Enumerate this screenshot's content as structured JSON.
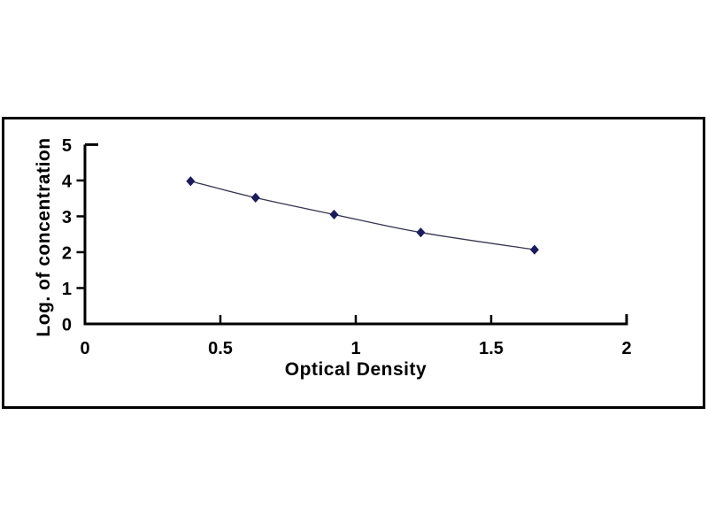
{
  "page": {
    "background": "#ffffff"
  },
  "chart_data": {
    "type": "line",
    "title": "",
    "xlabel": "Optical Density",
    "ylabel": "Log. of concentration",
    "x": [
      0.39,
      0.63,
      0.92,
      1.24,
      1.66
    ],
    "y": [
      3.98,
      3.52,
      3.05,
      2.55,
      2.07
    ],
    "xlim": [
      0,
      2
    ],
    "ylim": [
      0,
      5
    ],
    "x_ticks": [
      0,
      0.5,
      1,
      1.5,
      2
    ],
    "x_tick_labels": [
      "0",
      "0.5",
      "1",
      "1.5",
      "2"
    ],
    "y_ticks": [
      0,
      1,
      2,
      3,
      4,
      5
    ],
    "y_tick_labels": [
      "0",
      "1",
      "2",
      "3",
      "4",
      "5"
    ],
    "grid": false,
    "legend_position": "none",
    "marker": "diamond",
    "colors": {
      "marker": "#1b1b5e",
      "line": "#34344e",
      "axis": "#000000",
      "text": "#000000",
      "frame_border": "#000000"
    }
  }
}
